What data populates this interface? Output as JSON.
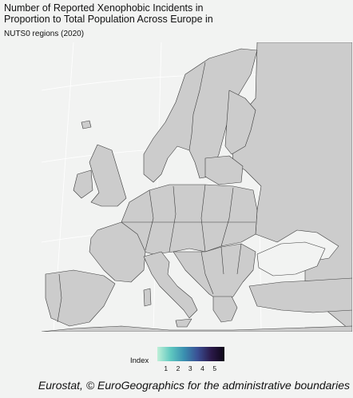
{
  "title": "Number of Reported Xenophobic Incidents in Proportion to Total Population Across Europe in",
  "subtitle": "NUTS0 regions (2020)",
  "caption": "Eurostat, © EuroGeographics for the administrative boundaries",
  "legend": {
    "label": "Index",
    "ticks": [
      "1",
      "2",
      "3",
      "4",
      "5"
    ],
    "min": 0.3,
    "max": 5.8,
    "colors": [
      "#bff0d8",
      "#5fc8c0",
      "#3a8fb0",
      "#3a4f94",
      "#2b1a4a",
      "#0d0616"
    ]
  },
  "colors": {
    "land": "#cccccc",
    "sea": "#f2f3f2",
    "border": "#3d3d3d",
    "graticule": "#ffffff"
  }
}
